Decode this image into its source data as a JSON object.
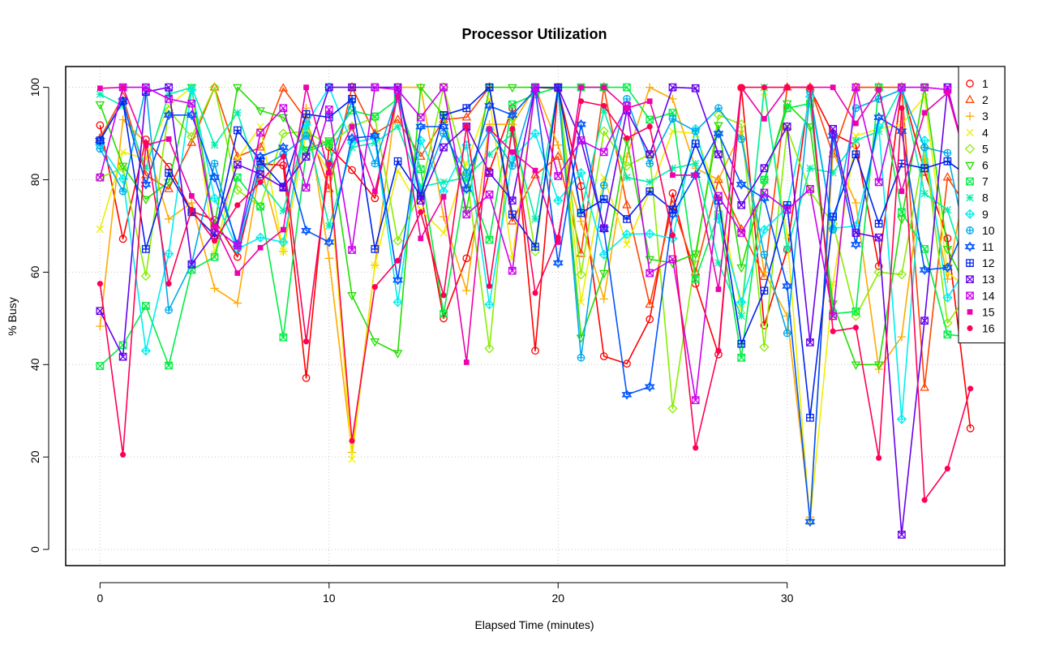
{
  "chart_data": {
    "type": "line",
    "title": "Processor Utilization",
    "xlabel": "Elapsed Time (minutes)",
    "ylabel": "% Busy",
    "xlim": [
      -1.5,
      39.5
    ],
    "ylim": [
      -3.5,
      104.5
    ],
    "xticks": [
      0,
      10,
      20,
      30
    ],
    "yticks": [
      0,
      20,
      40,
      60,
      80,
      100
    ],
    "grid": true,
    "legend_position": "top-right",
    "x": [
      0,
      1,
      2,
      3,
      4,
      5,
      6,
      7,
      8,
      9,
      10,
      11,
      12,
      13,
      14,
      15,
      16,
      17,
      18,
      19,
      20,
      21,
      22,
      23,
      24,
      25,
      26,
      27,
      28,
      29,
      30,
      31,
      32,
      33,
      34,
      35,
      36,
      37,
      38
    ],
    "series": [
      {
        "name": "1",
        "color": "#ff0000",
        "marker": "circle",
        "values": [
          91.8,
          67.2,
          88.7,
          82.8,
          73.2,
          71.3,
          63.3,
          83.5,
          83.1,
          37.1,
          87.1,
          82.1,
          76.0,
          99.4,
          77.3,
          50.0,
          63.0,
          81.8,
          95.5,
          43.0,
          99.8,
          78.6,
          41.8,
          40.2,
          49.8,
          77.1,
          57.5,
          42.2,
          99.9,
          48.5,
          64.9,
          99.7,
          90.0,
          87.5,
          61.3,
          100,
          81.7,
          67.3,
          26.2
        ]
      },
      {
        "name": "2",
        "color": "#ff4400",
        "marker": "triangle",
        "values": [
          89.0,
          98.0,
          81.0,
          78.0,
          88.0,
          100,
          85.0,
          87.0,
          99.8,
          93.0,
          78.0,
          100,
          90.0,
          93.0,
          85.0,
          93.0,
          93.5,
          100,
          71.0,
          81.0,
          85.0,
          64.0,
          100,
          74.5,
          53.0,
          74.5,
          60.0,
          80.0,
          69.3,
          59.0,
          100,
          100,
          85.5,
          100,
          100,
          100,
          35.0,
          80.5,
          73.0
        ]
      },
      {
        "name": "3",
        "color": "#ffaa00",
        "marker": "plus",
        "values": [
          48.3,
          93.0,
          88.0,
          71.5,
          75.0,
          56.5,
          53.3,
          83.0,
          64.5,
          95.5,
          63.0,
          21.0,
          61.5,
          100,
          100,
          72.0,
          56.0,
          92.0,
          92.0,
          100,
          87.5,
          71.0,
          54.2,
          85.0,
          100,
          97.5,
          82.5,
          80.0,
          90.5,
          60.0,
          50.5,
          7.0,
          86.0,
          75.0,
          39.0,
          46.0,
          84.5,
          58.5,
          85.0
        ]
      },
      {
        "name": "4",
        "color": "#eeee00",
        "marker": "x",
        "values": [
          69.3,
          86.0,
          84.5,
          96.0,
          100,
          64.0,
          84.5,
          91.5,
          64.5,
          90.0,
          81.5,
          19.5,
          61.5,
          82.0,
          73.5,
          68.5,
          83.5,
          97.5,
          63.0,
          100,
          99.5,
          53.5,
          80.5,
          66.0,
          77.5,
          90.5,
          90.0,
          76.0,
          52.0,
          99.0,
          68.0,
          6.0,
          57.5,
          89.5,
          91.0,
          92.0,
          98.0,
          60.0,
          56.0
        ]
      },
      {
        "name": "5",
        "color": "#88ee00",
        "marker": "diamond",
        "values": [
          80.5,
          82.5,
          59.2,
          95.0,
          89.3,
          100,
          77.8,
          74.2,
          90.0,
          90.5,
          87.5,
          91.5,
          93.5,
          66.8,
          77.5,
          100,
          81.5,
          43.5,
          93.5,
          64.5,
          100,
          59.5,
          90.5,
          83.0,
          85.5,
          30.5,
          63.0,
          94.0,
          92.0,
          43.8,
          91.0,
          77.5,
          70.5,
          50.5,
          60.0,
          59.5,
          87.0,
          49.0,
          56.0
        ]
      },
      {
        "name": "6",
        "color": "#22dd00",
        "marker": "triangle-down",
        "values": [
          96.3,
          83.0,
          75.8,
          79.5,
          100,
          70.0,
          100,
          95.0,
          93.5,
          86.5,
          88.5,
          55.0,
          45.0,
          42.5,
          100,
          94.0,
          73.5,
          100,
          100,
          100,
          100,
          45.8,
          59.8,
          88.5,
          62.8,
          62.0,
          64.0,
          91.8,
          61.0,
          79.5,
          96.5,
          91.5,
          53.2,
          40.0,
          40.0,
          71.5,
          100,
          65.0,
          55.0
        ]
      },
      {
        "name": "7",
        "color": "#00ee44",
        "marker": "square-x",
        "values": [
          39.7,
          44.2,
          52.7,
          39.8,
          60.5,
          63.3,
          80.5,
          74.2,
          45.9,
          86.0,
          88.0,
          95.0,
          93.7,
          97.5,
          82.3,
          51.0,
          80.5,
          67.0,
          96.3,
          98.5,
          100,
          100,
          100,
          100,
          93.0,
          94.5,
          58.5,
          72.5,
          41.5,
          80.0,
          95.5,
          96.5,
          51.0,
          51.5,
          100,
          73.0,
          65.0,
          46.5,
          46.0
        ]
      },
      {
        "name": "8",
        "color": "#00eeaa",
        "marker": "asterisk",
        "values": [
          98.5,
          96.0,
          82.5,
          98.5,
          100,
          87.5,
          94.5,
          79.5,
          73.3,
          91.5,
          70.0,
          87.0,
          88.0,
          91.5,
          78.5,
          79.5,
          80.5,
          85.5,
          90.0,
          71.5,
          100,
          73.0,
          95.0,
          80.5,
          79.5,
          82.5,
          83.5,
          62.0,
          50.5,
          100,
          65.0,
          82.5,
          81.5,
          88.5,
          90.5,
          100,
          77.0,
          73.5,
          58.0
        ]
      },
      {
        "name": "9",
        "color": "#00eeee",
        "marker": "diamond-plus",
        "values": [
          87.5,
          80.2,
          43.0,
          64.0,
          99.5,
          76.0,
          65.0,
          67.5,
          66.5,
          92.0,
          100,
          88.0,
          89.0,
          53.5,
          88.5,
          77.5,
          87.5,
          53.0,
          84.5,
          90.0,
          75.5,
          81.5,
          63.8,
          68.2,
          68.3,
          67.3,
          91.0,
          71.5,
          53.5,
          69.2,
          74.0,
          98.0,
          69.5,
          70.0,
          91.5,
          28.2,
          88.5,
          54.5,
          62.0
        ]
      },
      {
        "name": "10",
        "color": "#00aaee",
        "marker": "circle-plus",
        "values": [
          86.7,
          77.5,
          100,
          51.8,
          61.8,
          83.5,
          65.0,
          82.5,
          85.5,
          89.5,
          83.5,
          97.0,
          83.5,
          98.5,
          77.0,
          90.0,
          81.5,
          90.8,
          83.0,
          100,
          99.8,
          41.5,
          78.8,
          97.5,
          83.5,
          93.2,
          90.5,
          95.5,
          88.8,
          63.8,
          46.8,
          99.0,
          69.2,
          95.5,
          97.5,
          99.5,
          87.0,
          85.8,
          62.0
        ]
      },
      {
        "name": "11",
        "color": "#0055ff",
        "marker": "star6",
        "values": [
          88.5,
          97.0,
          79.0,
          94.0,
          94.0,
          80.5,
          66.0,
          85.0,
          87.0,
          69.0,
          66.5,
          89.0,
          89.5,
          58.3,
          91.5,
          91.5,
          78.0,
          96.0,
          94.0,
          99.5,
          62.0,
          92.0,
          69.3,
          33.5,
          35.2,
          72.5,
          81.0,
          90.0,
          79.0,
          76.0,
          57.0,
          6.0,
          89.5,
          66.0,
          93.5,
          90.5,
          60.5,
          61.0,
          72.5
        ]
      },
      {
        "name": "12",
        "color": "#0022ee",
        "marker": "square-plus",
        "values": [
          88.5,
          97.0,
          65.0,
          81.5,
          73.0,
          68.0,
          90.7,
          84.0,
          78.5,
          94.2,
          93.5,
          97.5,
          65.0,
          84.0,
          76.5,
          94.0,
          95.5,
          100,
          72.5,
          65.5,
          100,
          72.8,
          75.8,
          71.5,
          77.5,
          73.5,
          87.8,
          75.5,
          44.5,
          56.0,
          74.5,
          28.5,
          72.0,
          85.5,
          70.5,
          83.5,
          82.5,
          84.0,
          80.5
        ]
      },
      {
        "name": "13",
        "color": "#6600ee",
        "marker": "square-x",
        "values": [
          51.6,
          41.7,
          99.0,
          100,
          61.7,
          68.5,
          83.3,
          81.2,
          78.3,
          85.0,
          100,
          100,
          100,
          100,
          75.5,
          87.0,
          91.5,
          81.5,
          75.5,
          100,
          99.9,
          88.5,
          69.5,
          95.0,
          85.5,
          100,
          99.8,
          85.5,
          74.5,
          82.5,
          91.5,
          44.8,
          91.0,
          68.5,
          67.5,
          3.2,
          49.5,
          100,
          80.5
        ]
      },
      {
        "name": "14",
        "color": "#cc00ee",
        "marker": "square-x",
        "values": [
          80.5,
          100,
          100,
          97.5,
          96.5,
          69.5,
          65.8,
          90.2,
          95.5,
          78.3,
          95.2,
          64.8,
          100,
          99.5,
          93.5,
          100,
          72.5,
          76.8,
          60.3,
          100,
          80.8,
          88.5,
          86.0,
          96.0,
          59.8,
          62.8,
          32.3,
          76.5,
          68.5,
          77.2,
          73.5,
          78.0,
          50.5,
          100,
          79.5,
          100,
          100,
          99.5,
          81.0
        ]
      },
      {
        "name": "15",
        "color": "#ee00aa",
        "marker": "square",
        "values": [
          99.8,
          100,
          87.5,
          88.8,
          76.5,
          70.0,
          59.8,
          65.3,
          69.2,
          100,
          81.5,
          91.5,
          77.5,
          98.0,
          67.3,
          76.3,
          40.5,
          91.0,
          86.0,
          82.0,
          66.5,
          100,
          100,
          95.5,
          97.0,
          81.0,
          81.0,
          56.3,
          100,
          93.2,
          100,
          100,
          100,
          92.2,
          99.5,
          77.5,
          94.5,
          98.8,
          81.0
        ]
      },
      {
        "name": "16",
        "color": "#ff0055",
        "marker": "dot",
        "values": [
          57.5,
          20.5,
          88.0,
          57.5,
          73.5,
          66.8,
          74.5,
          79.5,
          85.0,
          45.0,
          83.5,
          23.5,
          56.8,
          62.5,
          73.0,
          55.0,
          91.5,
          57.0,
          91.0,
          55.5,
          67.5,
          97.0,
          96.0,
          89.0,
          91.5,
          68.0,
          22.0,
          43.0,
          100,
          100,
          100,
          100,
          47.2,
          48.0,
          19.8,
          95.5,
          10.7,
          17.5,
          34.8
        ]
      }
    ]
  }
}
